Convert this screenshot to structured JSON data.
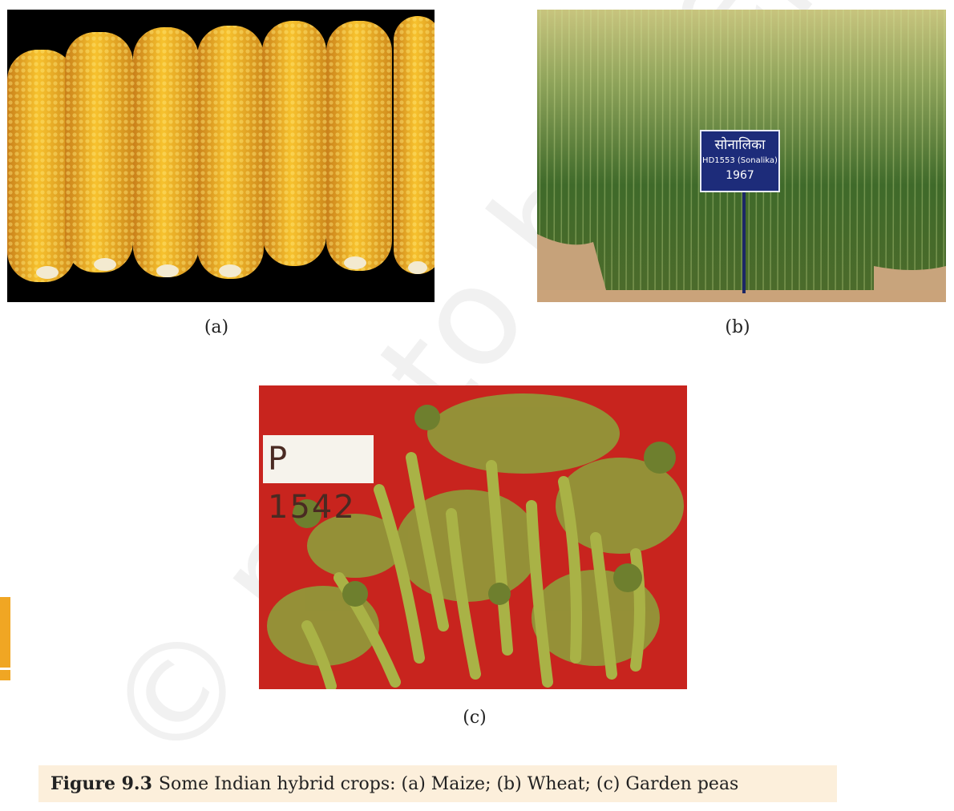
{
  "figure": {
    "panels": [
      {
        "label": "(a)",
        "subject": "Maize"
      },
      {
        "label": "(b)",
        "subject": "Wheat",
        "sign": {
          "line1": "सोनालिका",
          "line2": "HD1553 (Sonalika)",
          "line3": "1967"
        }
      },
      {
        "label": "(c)",
        "subject": "Garden peas",
        "sign": "P 1542"
      }
    ],
    "caption": {
      "number": "Figure 9.3",
      "text": "Some Indian hybrid crops: (a) Maize; (b) Wheat; (c) Garden peas"
    }
  },
  "watermark": "© not to be republished",
  "colors": {
    "accent_tab": "#f0a623",
    "caption_bg": "#fcefdb"
  }
}
